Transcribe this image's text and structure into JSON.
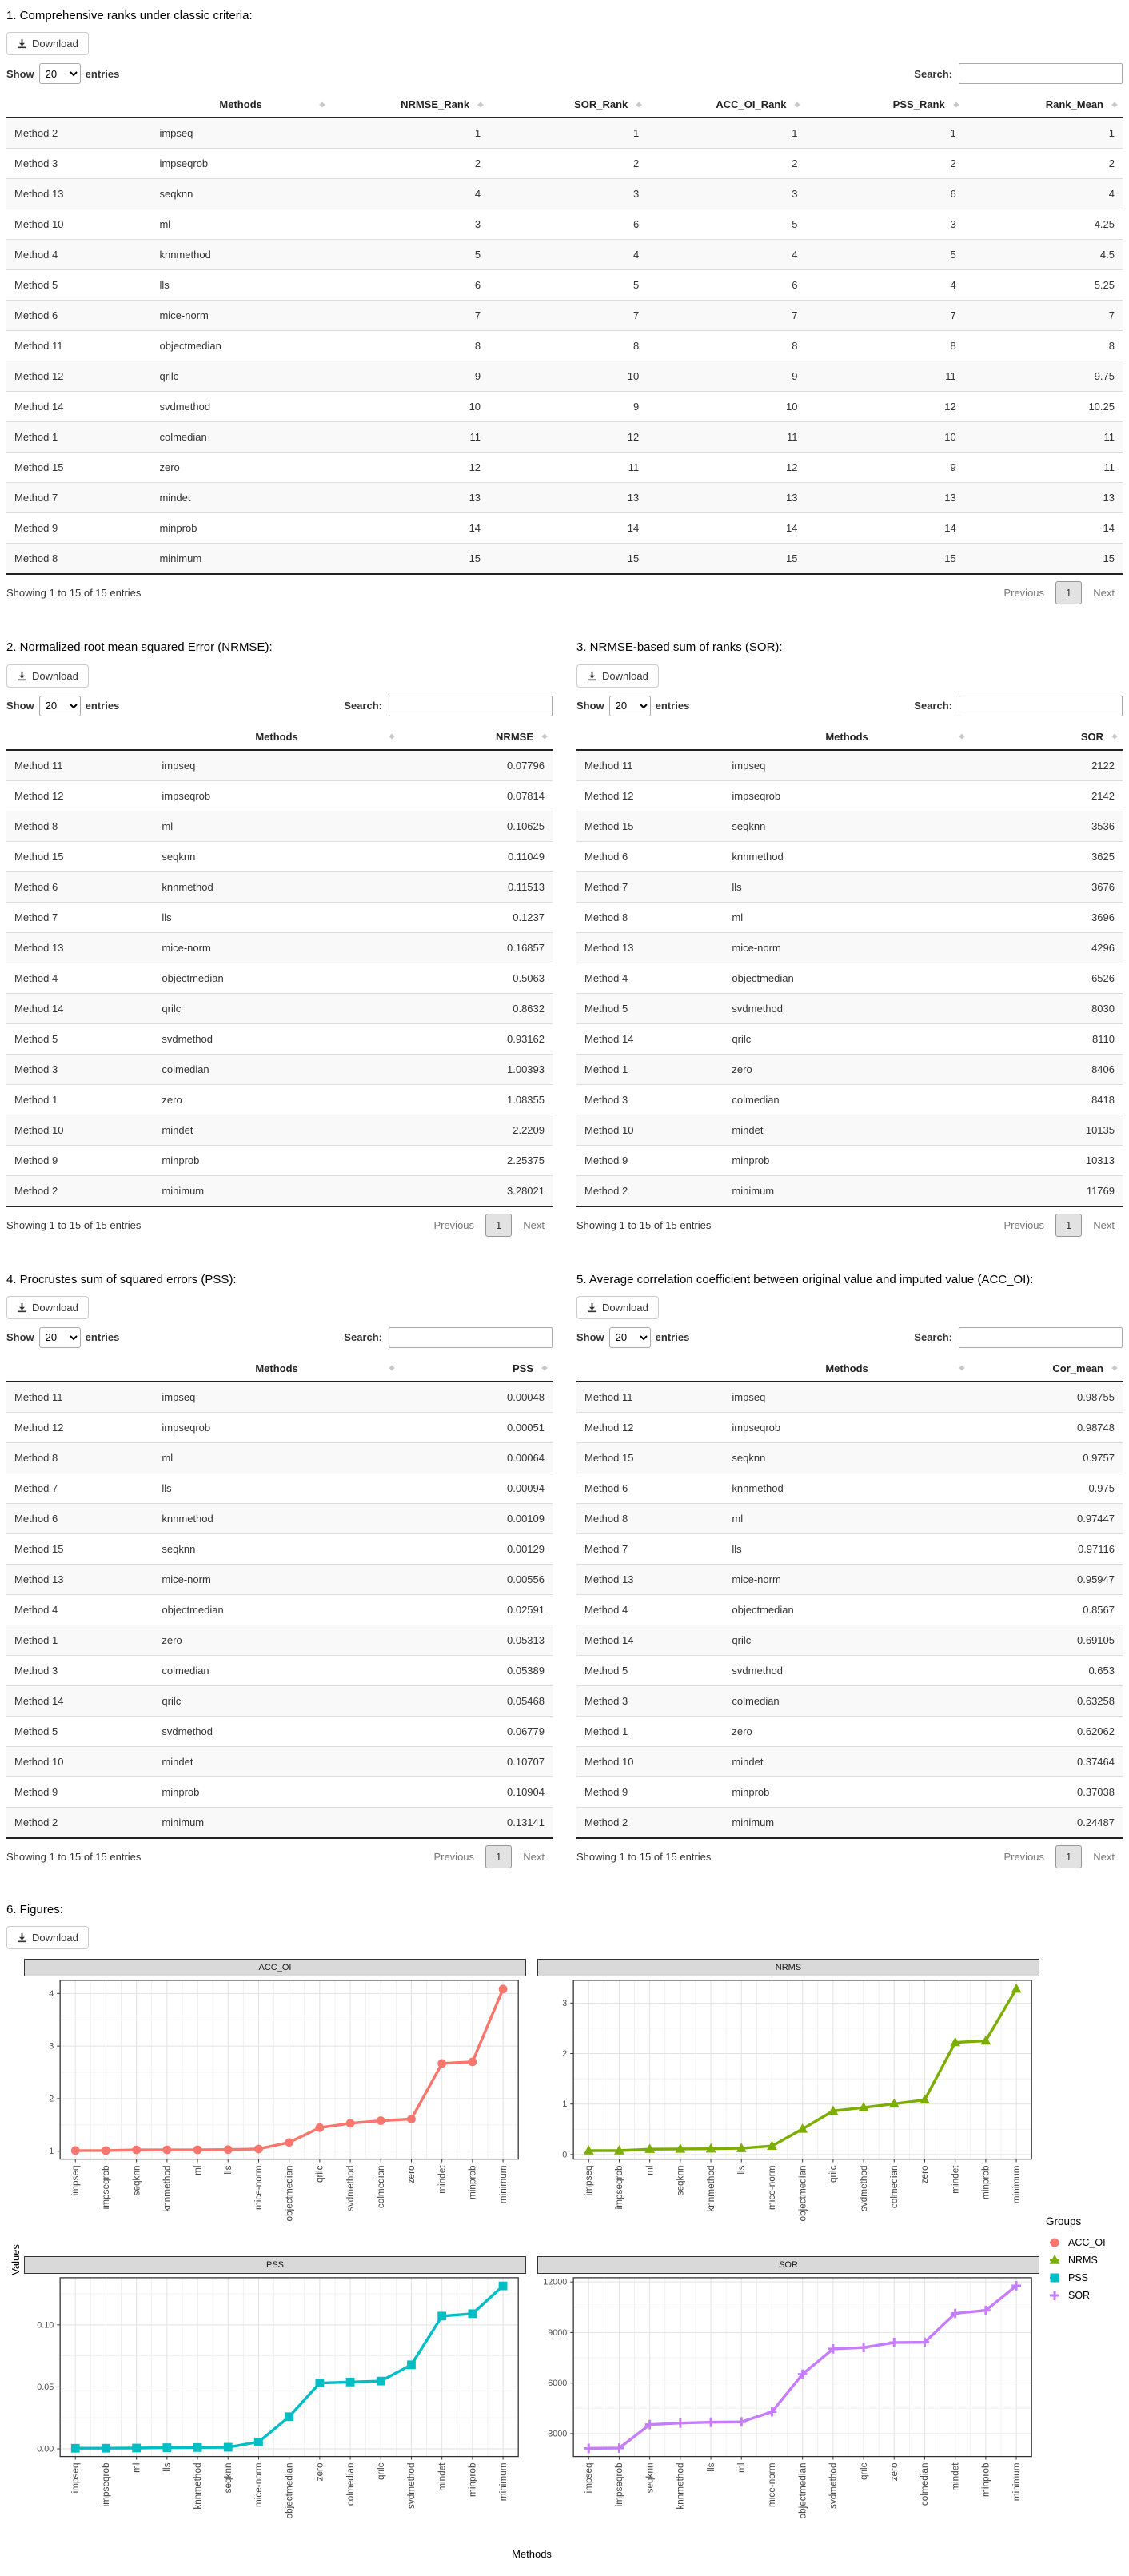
{
  "controls": {
    "download_label": "Download",
    "show_label": "Show",
    "page_length": "20",
    "entries_label": "entries",
    "search_label": "Search:",
    "search_value": "",
    "info_text": "Showing 1 to 15 of 15 entries",
    "previous_label": "Previous",
    "page_number": "1",
    "next_label": "Next"
  },
  "sections": [
    {
      "id": "ranks",
      "title": "1. Comprehensive ranks under classic criteria:",
      "table": {
        "columns": [
          "",
          "Methods",
          "NRMSE_Rank",
          "SOR_Rank",
          "ACC_OI_Rank",
          "PSS_Rank",
          "Rank_Mean"
        ],
        "rows": [
          [
            "Method 2",
            "impseq",
            "1",
            "1",
            "1",
            "1",
            "1"
          ],
          [
            "Method 3",
            "impseqrob",
            "2",
            "2",
            "2",
            "2",
            "2"
          ],
          [
            "Method 13",
            "seqknn",
            "4",
            "3",
            "3",
            "6",
            "4"
          ],
          [
            "Method 10",
            "ml",
            "3",
            "6",
            "5",
            "3",
            "4.25"
          ],
          [
            "Method 4",
            "knnmethod",
            "5",
            "4",
            "4",
            "5",
            "4.5"
          ],
          [
            "Method 5",
            "lls",
            "6",
            "5",
            "6",
            "4",
            "5.25"
          ],
          [
            "Method 6",
            "mice-norm",
            "7",
            "7",
            "7",
            "7",
            "7"
          ],
          [
            "Method 11",
            "objectmedian",
            "8",
            "8",
            "8",
            "8",
            "8"
          ],
          [
            "Method 12",
            "qrilc",
            "9",
            "10",
            "9",
            "11",
            "9.75"
          ],
          [
            "Method 14",
            "svdmethod",
            "10",
            "9",
            "10",
            "12",
            "10.25"
          ],
          [
            "Method 1",
            "colmedian",
            "11",
            "12",
            "11",
            "10",
            "11"
          ],
          [
            "Method 15",
            "zero",
            "12",
            "11",
            "12",
            "9",
            "11"
          ],
          [
            "Method 7",
            "mindet",
            "13",
            "13",
            "13",
            "13",
            "13"
          ],
          [
            "Method 9",
            "minprob",
            "14",
            "14",
            "14",
            "14",
            "14"
          ],
          [
            "Method 8",
            "minimum",
            "15",
            "15",
            "15",
            "15",
            "15"
          ]
        ]
      }
    },
    {
      "id": "nrmse",
      "title": "2. Normalized root mean squared Error (NRMSE):",
      "table": {
        "columns": [
          "",
          "Methods",
          "NRMSE"
        ],
        "rows": [
          [
            "Method 11",
            "impseq",
            "0.07796"
          ],
          [
            "Method 12",
            "impseqrob",
            "0.07814"
          ],
          [
            "Method 8",
            "ml",
            "0.10625"
          ],
          [
            "Method 15",
            "seqknn",
            "0.11049"
          ],
          [
            "Method 6",
            "knnmethod",
            "0.11513"
          ],
          [
            "Method 7",
            "lls",
            "0.1237"
          ],
          [
            "Method 13",
            "mice-norm",
            "0.16857"
          ],
          [
            "Method 4",
            "objectmedian",
            "0.5063"
          ],
          [
            "Method 14",
            "qrilc",
            "0.8632"
          ],
          [
            "Method 5",
            "svdmethod",
            "0.93162"
          ],
          [
            "Method 3",
            "colmedian",
            "1.00393"
          ],
          [
            "Method 1",
            "zero",
            "1.08355"
          ],
          [
            "Method 10",
            "mindet",
            "2.2209"
          ],
          [
            "Method 9",
            "minprob",
            "2.25375"
          ],
          [
            "Method 2",
            "minimum",
            "3.28021"
          ]
        ]
      }
    },
    {
      "id": "sor",
      "title": "3. NRMSE-based sum of ranks (SOR):",
      "table": {
        "columns": [
          "",
          "Methods",
          "SOR"
        ],
        "rows": [
          [
            "Method 11",
            "impseq",
            "2122"
          ],
          [
            "Method 12",
            "impseqrob",
            "2142"
          ],
          [
            "Method 15",
            "seqknn",
            "3536"
          ],
          [
            "Method 6",
            "knnmethod",
            "3625"
          ],
          [
            "Method 7",
            "lls",
            "3676"
          ],
          [
            "Method 8",
            "ml",
            "3696"
          ],
          [
            "Method 13",
            "mice-norm",
            "4296"
          ],
          [
            "Method 4",
            "objectmedian",
            "6526"
          ],
          [
            "Method 5",
            "svdmethod",
            "8030"
          ],
          [
            "Method 14",
            "qrilc",
            "8110"
          ],
          [
            "Method 1",
            "zero",
            "8406"
          ],
          [
            "Method 3",
            "colmedian",
            "8418"
          ],
          [
            "Method 10",
            "mindet",
            "10135"
          ],
          [
            "Method 9",
            "minprob",
            "10313"
          ],
          [
            "Method 2",
            "minimum",
            "11769"
          ]
        ]
      }
    },
    {
      "id": "pss",
      "title": "4. Procrustes sum of squared errors (PSS):",
      "table": {
        "columns": [
          "",
          "Methods",
          "PSS"
        ],
        "rows": [
          [
            "Method 11",
            "impseq",
            "0.00048"
          ],
          [
            "Method 12",
            "impseqrob",
            "0.00051"
          ],
          [
            "Method 8",
            "ml",
            "0.00064"
          ],
          [
            "Method 7",
            "lls",
            "0.00094"
          ],
          [
            "Method 6",
            "knnmethod",
            "0.00109"
          ],
          [
            "Method 15",
            "seqknn",
            "0.00129"
          ],
          [
            "Method 13",
            "mice-norm",
            "0.00556"
          ],
          [
            "Method 4",
            "objectmedian",
            "0.02591"
          ],
          [
            "Method 1",
            "zero",
            "0.05313"
          ],
          [
            "Method 3",
            "colmedian",
            "0.05389"
          ],
          [
            "Method 14",
            "qrilc",
            "0.05468"
          ],
          [
            "Method 5",
            "svdmethod",
            "0.06779"
          ],
          [
            "Method 10",
            "mindet",
            "0.10707"
          ],
          [
            "Method 9",
            "minprob",
            "0.10904"
          ],
          [
            "Method 2",
            "minimum",
            "0.13141"
          ]
        ]
      }
    },
    {
      "id": "acc",
      "title": "5. Average correlation coefficient between original value and imputed value (ACC_OI):",
      "table": {
        "columns": [
          "",
          "Methods",
          "Cor_mean"
        ],
        "rows": [
          [
            "Method 11",
            "impseq",
            "0.98755"
          ],
          [
            "Method 12",
            "impseqrob",
            "0.98748"
          ],
          [
            "Method 15",
            "seqknn",
            "0.9757"
          ],
          [
            "Method 6",
            "knnmethod",
            "0.975"
          ],
          [
            "Method 8",
            "ml",
            "0.97447"
          ],
          [
            "Method 7",
            "lls",
            "0.97116"
          ],
          [
            "Method 13",
            "mice-norm",
            "0.95947"
          ],
          [
            "Method 4",
            "objectmedian",
            "0.8567"
          ],
          [
            "Method 14",
            "qrilc",
            "0.69105"
          ],
          [
            "Method 5",
            "svdmethod",
            "0.653"
          ],
          [
            "Method 3",
            "colmedian",
            "0.63258"
          ],
          [
            "Method 1",
            "zero",
            "0.62062"
          ],
          [
            "Method 10",
            "mindet",
            "0.37464"
          ],
          [
            "Method 9",
            "minprob",
            "0.37038"
          ],
          [
            "Method 2",
            "minimum",
            "0.24487"
          ]
        ]
      }
    },
    {
      "id": "figures",
      "title": "6. Figures:"
    }
  ],
  "figure": {
    "ylabel": "Values",
    "xlabel": "Methods",
    "legend_title": "Groups",
    "legend": [
      {
        "label": "ACC_OI",
        "color": "#F8766D",
        "marker": "circle"
      },
      {
        "label": "NRMS",
        "color": "#7CAE00",
        "marker": "triangle"
      },
      {
        "label": "PSS",
        "color": "#00BFC4",
        "marker": "square"
      },
      {
        "label": "SOR",
        "color": "#C77CFF",
        "marker": "plus"
      }
    ]
  },
  "chart_data": [
    {
      "type": "line",
      "title": "ACC_OI",
      "color": "#F8766D",
      "marker": "circle",
      "categories": [
        "impseq",
        "impseqrob",
        "seqknn",
        "knnmethod",
        "ml",
        "lls",
        "mice-norm",
        "objectmedian",
        "qrilc",
        "svdmethod",
        "colmedian",
        "zero",
        "mindet",
        "minprob",
        "minimum"
      ],
      "values": [
        1.0126,
        1.0127,
        1.0249,
        1.0256,
        1.0262,
        1.0297,
        1.0422,
        1.1673,
        1.4471,
        1.5314,
        1.5808,
        1.6113,
        2.6692,
        2.6999,
        4.0838
      ],
      "yticks": [
        1,
        2,
        3,
        4
      ],
      "ytick_labels": [
        "1",
        "2",
        "3",
        "4"
      ],
      "ylim": [
        0.85,
        4.25
      ]
    },
    {
      "type": "line",
      "title": "NRMS",
      "color": "#7CAE00",
      "marker": "triangle",
      "categories": [
        "impseq",
        "impseqrob",
        "ml",
        "seqknn",
        "knnmethod",
        "lls",
        "mice-norm",
        "objectmedian",
        "qrilc",
        "svdmethod",
        "colmedian",
        "zero",
        "mindet",
        "minprob",
        "minimum"
      ],
      "values": [
        0.07796,
        0.07814,
        0.10625,
        0.11049,
        0.11513,
        0.1237,
        0.16857,
        0.5063,
        0.8632,
        0.93162,
        1.00393,
        1.08355,
        2.2209,
        2.25375,
        3.28021
      ],
      "yticks": [
        0,
        1,
        2,
        3
      ],
      "ytick_labels": [
        "0",
        "1",
        "2",
        "3"
      ],
      "ylim": [
        -0.09,
        3.45
      ]
    },
    {
      "type": "line",
      "title": "PSS",
      "color": "#00BFC4",
      "marker": "square",
      "categories": [
        "impseq",
        "impseqrob",
        "ml",
        "lls",
        "knnmethod",
        "seqknn",
        "mice-norm",
        "objectmedian",
        "zero",
        "colmedian",
        "qrilc",
        "svdmethod",
        "mindet",
        "minprob",
        "minimum"
      ],
      "values": [
        0.00048,
        0.00051,
        0.00064,
        0.00094,
        0.00109,
        0.00129,
        0.00556,
        0.02591,
        0.05313,
        0.05389,
        0.05468,
        0.06779,
        0.10707,
        0.10904,
        0.13141
      ],
      "yticks": [
        0,
        0.05,
        0.1
      ],
      "ytick_labels": [
        "0.00",
        "0.05",
        "0.10"
      ],
      "ylim": [
        -0.0062,
        0.138
      ]
    },
    {
      "type": "line",
      "title": "SOR",
      "color": "#C77CFF",
      "marker": "plus",
      "categories": [
        "impseq",
        "impseqrob",
        "seqknn",
        "knnmethod",
        "lls",
        "ml",
        "mice-norm",
        "objectmedian",
        "svdmethod",
        "qrilc",
        "zero",
        "colmedian",
        "mindet",
        "minprob",
        "minimum"
      ],
      "values": [
        2122,
        2142,
        3536,
        3625,
        3676,
        3696,
        4296,
        6526,
        8030,
        8110,
        8406,
        8418,
        10135,
        10313,
        11769
      ],
      "yticks": [
        3000,
        6000,
        9000,
        12000
      ],
      "ytick_labels": [
        "3000",
        "6000",
        "9000",
        "12000"
      ],
      "ylim": [
        1640,
        12250
      ]
    }
  ]
}
